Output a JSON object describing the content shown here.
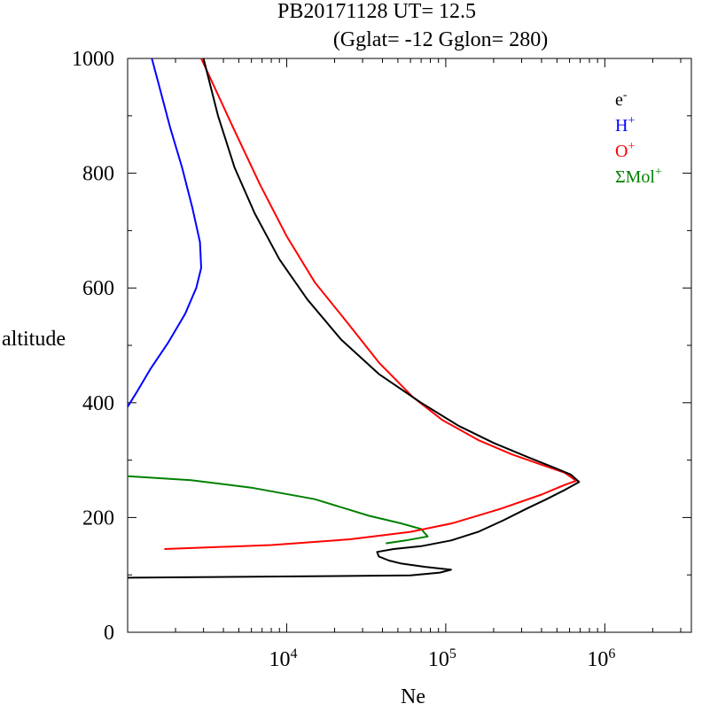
{
  "chart_data": {
    "type": "line",
    "title": "PB20171128   UT=  12.5",
    "subtitle": "(Gglat= -12   Gglon=  280)",
    "xlabel": "Ne",
    "ylabel": "altitude",
    "x_scale": "log",
    "xlim": [
      1000,
      3500000
    ],
    "ylim": [
      0,
      1000
    ],
    "x_ticks": [
      {
        "value": 10000,
        "base": "10",
        "exp": "4"
      },
      {
        "value": 100000,
        "base": "10",
        "exp": "5"
      },
      {
        "value": 1000000,
        "base": "10",
        "exp": "6"
      }
    ],
    "y_ticks": [
      {
        "value": 0,
        "label": "0"
      },
      {
        "value": 200,
        "label": "200"
      },
      {
        "value": 400,
        "label": "400"
      },
      {
        "value": 600,
        "label": "600"
      },
      {
        "value": 800,
        "label": "800"
      },
      {
        "value": 1000,
        "label": "1000"
      }
    ],
    "legend": {
      "position": "top-right"
    },
    "series": [
      {
        "name": "e-",
        "base": "e",
        "sup": "-",
        "color": "#000000",
        "points": [
          [
            1000,
            95
          ],
          [
            60000,
            99
          ],
          [
            92000,
            104
          ],
          [
            108000,
            109
          ],
          [
            74000,
            114
          ],
          [
            52000,
            120
          ],
          [
            44000,
            125
          ],
          [
            38000,
            132
          ],
          [
            37000,
            140
          ],
          [
            47000,
            145
          ],
          [
            70000,
            150
          ],
          [
            108000,
            160
          ],
          [
            160000,
            175
          ],
          [
            230000,
            195
          ],
          [
            320000,
            215
          ],
          [
            430000,
            232
          ],
          [
            560000,
            248
          ],
          [
            690000,
            262
          ],
          [
            610000,
            275
          ],
          [
            470000,
            288
          ],
          [
            330000,
            305
          ],
          [
            200000,
            330
          ],
          [
            120000,
            360
          ],
          [
            70000,
            400
          ],
          [
            38000,
            450
          ],
          [
            22000,
            510
          ],
          [
            13500,
            580
          ],
          [
            9000,
            650
          ],
          [
            6300,
            730
          ],
          [
            4700,
            810
          ],
          [
            3700,
            900
          ],
          [
            3000,
            1000
          ]
        ]
      },
      {
        "name": "H+",
        "base": "H",
        "sup": "+",
        "color": "#0000ff",
        "points": [
          [
            1000,
            393
          ],
          [
            1150,
            420
          ],
          [
            1400,
            460
          ],
          [
            1800,
            505
          ],
          [
            2300,
            555
          ],
          [
            2700,
            600
          ],
          [
            2900,
            635
          ],
          [
            2850,
            680
          ],
          [
            2550,
            740
          ],
          [
            2200,
            810
          ],
          [
            1850,
            880
          ],
          [
            1550,
            960
          ],
          [
            1420,
            1000
          ]
        ]
      },
      {
        "name": "O+",
        "base": "O",
        "sup": "+",
        "color": "#ff0000",
        "points": [
          [
            1700,
            145
          ],
          [
            8000,
            152
          ],
          [
            25000,
            162
          ],
          [
            60000,
            175
          ],
          [
            110000,
            190
          ],
          [
            220000,
            215
          ],
          [
            400000,
            240
          ],
          [
            550000,
            256
          ],
          [
            660000,
            264
          ],
          [
            560000,
            278
          ],
          [
            400000,
            292
          ],
          [
            260000,
            310
          ],
          [
            160000,
            335
          ],
          [
            95000,
            370
          ],
          [
            62000,
            410
          ],
          [
            38000,
            470
          ],
          [
            24000,
            540
          ],
          [
            15000,
            610
          ],
          [
            10000,
            690
          ],
          [
            6800,
            780
          ],
          [
            4600,
            880
          ],
          [
            2900,
            1000
          ]
        ]
      },
      {
        "name": "ΣMol+",
        "base": "ΣMol",
        "sup": "+",
        "color": "#008000",
        "points": [
          [
            1000,
            272
          ],
          [
            2500,
            265
          ],
          [
            6000,
            252
          ],
          [
            15000,
            232
          ],
          [
            33000,
            203
          ],
          [
            52000,
            190
          ],
          [
            70000,
            180
          ],
          [
            77000,
            167
          ],
          [
            56000,
            160
          ],
          [
            42000,
            155
          ]
        ]
      }
    ]
  }
}
